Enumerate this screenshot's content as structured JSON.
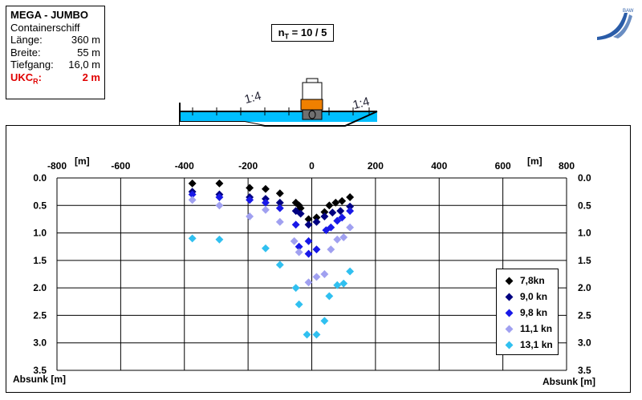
{
  "info": {
    "title": "MEGA - JUMBO",
    "type": "Containerschiff",
    "rows": [
      {
        "label": "Länge:",
        "value": "360 m"
      },
      {
        "label": "Breite:",
        "value": "55 m"
      },
      {
        "label": "Tiefgang:",
        "value": "16,0 m"
      }
    ],
    "ukc_label": "UKC",
    "ukc_sub": "R",
    "ukc_colon": ":",
    "ukc_value": "2 m"
  },
  "nt": {
    "prefix": "n",
    "sub": "T",
    "value": " = 10 / 5"
  },
  "slope_left": "1:4",
  "slope_right": "1:4",
  "logo_text": "BAW",
  "colors": {
    "black": "#000000",
    "navy": "#000080",
    "blue": "#1818e8",
    "lilac": "#a0a0f0",
    "cyan": "#30c0f0"
  },
  "chart_data": {
    "type": "scatter",
    "xlim": [
      -800,
      800
    ],
    "ylim": [
      0,
      3.5
    ],
    "x_ticks": [
      -800,
      -600,
      -400,
      -200,
      0,
      200,
      400,
      600,
      800
    ],
    "x_tick_labels": [
      "-800",
      "-600",
      "-400",
      "-200",
      "0",
      "200",
      "400",
      "600",
      "800"
    ],
    "y_ticks": [
      0,
      0.5,
      1,
      1.5,
      2,
      2.5,
      3,
      3.5
    ],
    "y_tick_labels": [
      "0.0",
      "0.5",
      "1.0",
      "1.5",
      "2.0",
      "2.5",
      "3.0",
      "3.5"
    ],
    "x_unit": "[m]",
    "ylabel": "Absunk [m]",
    "legend_position": "bottom-right",
    "y_inverted": true,
    "series": [
      {
        "name": "7,8kn",
        "color": "#000000",
        "points": [
          [
            -375,
            0.1
          ],
          [
            -290,
            0.1
          ],
          [
            -195,
            0.18
          ],
          [
            -145,
            0.2
          ],
          [
            -100,
            0.28
          ],
          [
            -50,
            0.45
          ],
          [
            -40,
            0.5
          ],
          [
            -35,
            0.55
          ],
          [
            -10,
            0.75
          ],
          [
            15,
            0.72
          ],
          [
            40,
            0.62
          ],
          [
            55,
            0.5
          ],
          [
            75,
            0.45
          ],
          [
            95,
            0.42
          ],
          [
            120,
            0.35
          ]
        ]
      },
      {
        "name": "9,0 kn",
        "color": "#000080",
        "points": [
          [
            -375,
            0.25
          ],
          [
            -290,
            0.3
          ],
          [
            -195,
            0.35
          ],
          [
            -145,
            0.38
          ],
          [
            -100,
            0.45
          ],
          [
            -50,
            0.6
          ],
          [
            -35,
            0.65
          ],
          [
            -10,
            0.85
          ],
          [
            15,
            0.8
          ],
          [
            40,
            0.7
          ],
          [
            65,
            0.63
          ],
          [
            90,
            0.6
          ],
          [
            120,
            0.52
          ]
        ]
      },
      {
        "name": "9,8 kn",
        "color": "#1818e8",
        "points": [
          [
            -375,
            0.3
          ],
          [
            -290,
            0.35
          ],
          [
            -195,
            0.4
          ],
          [
            -145,
            0.45
          ],
          [
            -100,
            0.55
          ],
          [
            -50,
            0.85
          ],
          [
            -40,
            1.25
          ],
          [
            -10,
            1.15
          ],
          [
            -10,
            1.38
          ],
          [
            15,
            1.3
          ],
          [
            45,
            0.95
          ],
          [
            60,
            0.9
          ],
          [
            80,
            0.78
          ],
          [
            95,
            0.72
          ],
          [
            120,
            0.6
          ]
        ]
      },
      {
        "name": "11,1 kn",
        "color": "#a0a0f0",
        "points": [
          [
            -375,
            0.4
          ],
          [
            -290,
            0.5
          ],
          [
            -195,
            0.7
          ],
          [
            -145,
            0.58
          ],
          [
            -100,
            0.8
          ],
          [
            -55,
            1.15
          ],
          [
            -40,
            1.35
          ],
          [
            -10,
            1.9
          ],
          [
            15,
            1.8
          ],
          [
            40,
            1.75
          ],
          [
            60,
            1.3
          ],
          [
            80,
            1.12
          ],
          [
            100,
            1.08
          ],
          [
            120,
            0.9
          ]
        ]
      },
      {
        "name": "13,1 kn",
        "color": "#30c0f0",
        "points": [
          [
            -375,
            1.1
          ],
          [
            -290,
            1.12
          ],
          [
            -145,
            1.28
          ],
          [
            -100,
            1.58
          ],
          [
            -50,
            2.0
          ],
          [
            -40,
            2.3
          ],
          [
            -15,
            2.85
          ],
          [
            15,
            2.85
          ],
          [
            40,
            2.6
          ],
          [
            55,
            2.15
          ],
          [
            80,
            1.95
          ],
          [
            100,
            1.92
          ],
          [
            120,
            1.7
          ]
        ]
      }
    ]
  }
}
